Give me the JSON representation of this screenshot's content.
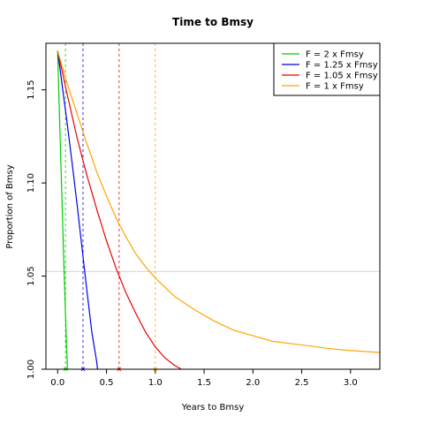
{
  "chart_data": {
    "type": "line",
    "title": "Time to Bmsy",
    "xlabel": "Years to Bmsy",
    "ylabel": "Proportion of Bmsy",
    "xlim": [
      -0.12,
      3.3
    ],
    "ylim": [
      1.0,
      1.175
    ],
    "x_ticks": [
      0.0,
      0.5,
      1.0,
      1.5,
      2.0,
      2.5,
      3.0
    ],
    "x_tick_labels": [
      "0.0",
      "0.5",
      "1.0",
      "1.5",
      "2.0",
      "2.5",
      "3.0"
    ],
    "y_ticks": [
      1.0,
      1.05,
      1.1,
      1.15
    ],
    "y_tick_labels": [
      "1.00",
      "1.05",
      "1.10",
      "1.15"
    ],
    "hline": 1.0525,
    "hline_color": "#d0d0d0",
    "legend_position": "top-right",
    "series": [
      {
        "name": "F = 2 x Fmsy",
        "color": "#00cc00",
        "vline": 0.08,
        "x": [
          0.0,
          0.01,
          0.02,
          0.03,
          0.04,
          0.05,
          0.06,
          0.07,
          0.08,
          0.09,
          0.1,
          0.105
        ],
        "y": [
          1.171,
          1.152,
          1.134,
          1.116,
          1.099,
          1.081,
          1.063,
          1.046,
          1.03,
          1.014,
          1.001,
          0.99
        ]
      },
      {
        "name": "F = 1.25 x Fmsy",
        "color": "#0000ee",
        "vline": 0.26,
        "x": [
          0.0,
          0.05,
          0.1,
          0.15,
          0.2,
          0.25,
          0.3,
          0.35,
          0.4,
          0.43
        ],
        "y": [
          1.171,
          1.151,
          1.131,
          1.11,
          1.088,
          1.065,
          1.042,
          1.02,
          1.004,
          0.99
        ]
      },
      {
        "name": "F = 1.05 x Fmsy",
        "color": "#ee0000",
        "vline": 0.63,
        "x": [
          0.0,
          0.1,
          0.2,
          0.3,
          0.4,
          0.5,
          0.6,
          0.7,
          0.8,
          0.9,
          1.0,
          1.1,
          1.2,
          1.3,
          1.35
        ],
        "y": [
          1.171,
          1.147,
          1.124,
          1.104,
          1.086,
          1.069,
          1.054,
          1.041,
          1.03,
          1.02,
          1.012,
          1.006,
          1.002,
          0.999,
          0.995
        ]
      },
      {
        "name": "F = 1 x Fmsy",
        "color": "#ffa500",
        "vline": 1.0,
        "x": [
          0.0,
          0.1,
          0.2,
          0.3,
          0.4,
          0.5,
          0.6,
          0.7,
          0.8,
          0.9,
          1.0,
          1.2,
          1.4,
          1.6,
          1.8,
          2.0,
          2.2,
          2.5,
          2.8,
          3.0,
          3.3
        ],
        "y": [
          1.171,
          1.153,
          1.137,
          1.121,
          1.106,
          1.093,
          1.081,
          1.071,
          1.062,
          1.055,
          1.049,
          1.039,
          1.032,
          1.026,
          1.021,
          1.018,
          1.015,
          1.013,
          1.011,
          1.01,
          1.009
        ]
      }
    ]
  }
}
